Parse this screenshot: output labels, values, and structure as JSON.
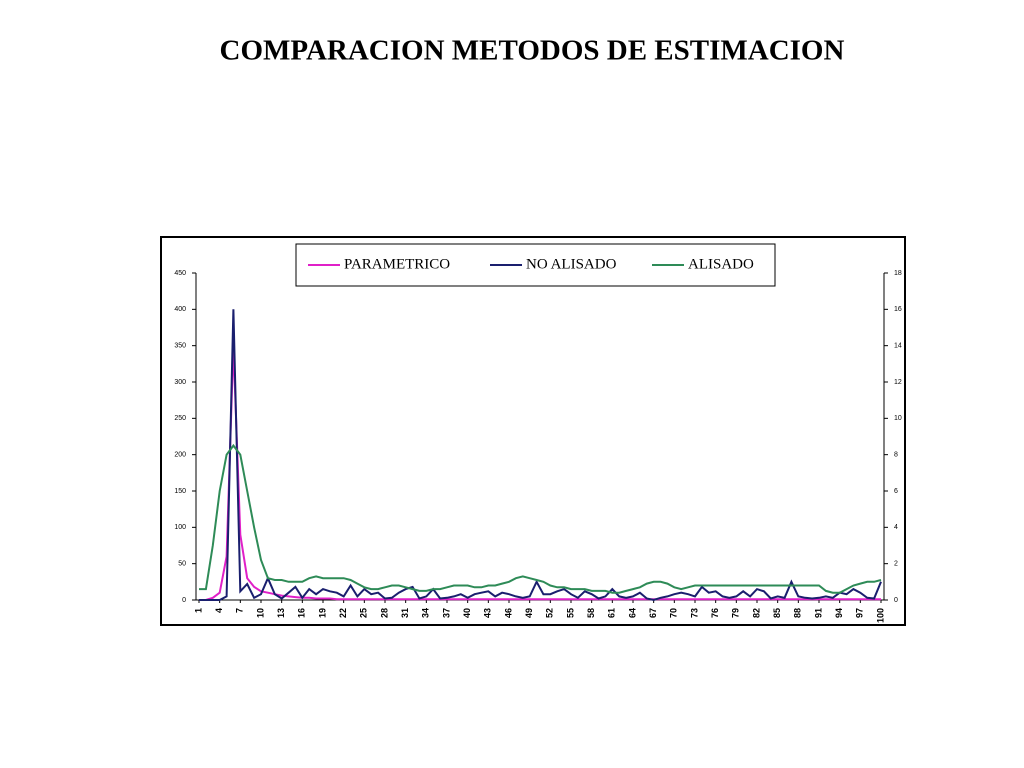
{
  "chart_data": {
    "type": "line",
    "title": "COMPARACION METODOS DE ESTIMACION",
    "categories": [
      "1",
      null,
      null,
      "4",
      null,
      null,
      "7",
      null,
      null,
      "10",
      null,
      null,
      "13",
      null,
      null,
      "16",
      null,
      null,
      "19",
      null,
      null,
      "22",
      null,
      null,
      "25",
      null,
      null,
      "28",
      null,
      null,
      "31",
      null,
      null,
      "34",
      null,
      null,
      "37",
      null,
      null,
      "40",
      null,
      null,
      "43",
      null,
      null,
      "46",
      null,
      null,
      "49",
      null,
      null,
      "52",
      null,
      null,
      "55",
      null,
      null,
      "58",
      null,
      null,
      "61",
      null,
      null,
      "64",
      null,
      null,
      "67",
      null,
      null,
      "70",
      null,
      null,
      "73",
      null,
      null,
      "76",
      null,
      null,
      "79",
      null,
      null,
      "82",
      null,
      null,
      "85",
      null,
      null,
      "88",
      null,
      null,
      "91",
      null,
      null,
      "94",
      null,
      null,
      "97",
      null,
      null,
      "100"
    ],
    "series": [
      {
        "name": "PARAMETRICO",
        "color": "#e020c8",
        "values": [
          0,
          0,
          3,
          10,
          60,
          350,
          90,
          30,
          18,
          12,
          10,
          8,
          6,
          5,
          4,
          3,
          3,
          2,
          2,
          2,
          1,
          1,
          1,
          1,
          1,
          1,
          1,
          1,
          1,
          1,
          1,
          1,
          1,
          1,
          1,
          1,
          1,
          1,
          1,
          1,
          1,
          1,
          1,
          1,
          1,
          1,
          1,
          1,
          1,
          1,
          1,
          1,
          1,
          1,
          1,
          1,
          1,
          1,
          1,
          1,
          1,
          1,
          1,
          1,
          1,
          1,
          1,
          1,
          1,
          1,
          1,
          1,
          1,
          1,
          1,
          1,
          1,
          1,
          1,
          1,
          1,
          1,
          1,
          1,
          1,
          1,
          1,
          1,
          1,
          1,
          1,
          1,
          1,
          1,
          1,
          1,
          1,
          1,
          1,
          1
        ]
      },
      {
        "name": "NO ALISADO",
        "color": "#1a1f6e",
        "values": [
          0,
          0,
          0,
          0,
          5,
          400,
          12,
          22,
          3,
          8,
          30,
          8,
          2,
          10,
          18,
          3,
          15,
          8,
          15,
          12,
          10,
          5,
          20,
          5,
          15,
          8,
          10,
          2,
          3,
          10,
          15,
          18,
          2,
          5,
          15,
          2,
          3,
          5,
          8,
          3,
          8,
          10,
          12,
          5,
          10,
          8,
          5,
          3,
          5,
          25,
          8,
          8,
          12,
          15,
          8,
          3,
          12,
          8,
          2,
          5,
          15,
          5,
          3,
          5,
          10,
          2,
          0,
          3,
          5,
          8,
          10,
          8,
          5,
          18,
          10,
          12,
          5,
          3,
          5,
          12,
          5,
          15,
          12,
          2,
          5,
          3,
          25,
          5,
          3,
          2,
          3,
          5,
          3,
          10,
          8,
          15,
          10,
          3,
          2,
          25
        ]
      },
      {
        "name": "ALISADO",
        "color": "#2e8b57",
        "axis": "y2",
        "values": [
          0.6,
          0.6,
          3,
          6,
          8,
          8.5,
          8,
          6,
          4,
          2.2,
          1.2,
          1.1,
          1.1,
          1,
          1,
          1,
          1.2,
          1.3,
          1.2,
          1.2,
          1.2,
          1.2,
          1.1,
          0.9,
          0.7,
          0.6,
          0.6,
          0.7,
          0.8,
          0.8,
          0.7,
          0.6,
          0.5,
          0.5,
          0.6,
          0.6,
          0.7,
          0.8,
          0.8,
          0.8,
          0.7,
          0.7,
          0.8,
          0.8,
          0.9,
          1.0,
          1.2,
          1.3,
          1.2,
          1.1,
          1.0,
          0.8,
          0.7,
          0.7,
          0.6,
          0.6,
          0.6,
          0.5,
          0.5,
          0.5,
          0.4,
          0.4,
          0.5,
          0.6,
          0.7,
          0.9,
          1.0,
          1.0,
          0.9,
          0.7,
          0.6,
          0.7,
          0.8,
          0.8,
          0.8,
          0.8,
          0.8,
          0.8,
          0.8,
          0.8,
          0.8,
          0.8,
          0.8,
          0.8,
          0.8,
          0.8,
          0.8,
          0.8,
          0.8,
          0.8,
          0.8,
          0.5,
          0.4,
          0.4,
          0.6,
          0.8,
          0.9,
          1.0,
          1.0,
          1.1
        ]
      }
    ],
    "ylim": [
      0,
      450
    ],
    "yticks": [
      0,
      50,
      100,
      150,
      200,
      250,
      300,
      350,
      400,
      450
    ],
    "y2lim": [
      0,
      18
    ],
    "y2ticks": [
      0,
      2,
      4,
      6,
      8,
      10,
      12,
      14,
      16,
      18
    ],
    "legend": "top"
  }
}
